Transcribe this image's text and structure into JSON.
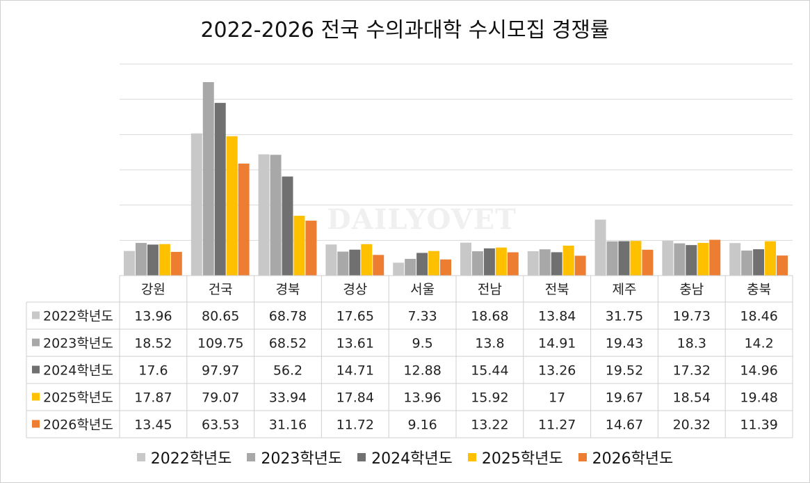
{
  "title": "2022-2026 전국 수의과대학 수시모집 경쟁률",
  "watermark": "DAILYOVET",
  "colors": {
    "s2022": "#c8c8c8",
    "s2023": "#a8a8a8",
    "s2024": "#707070",
    "s2025": "#ffc000",
    "s2026": "#ed7d31",
    "grid": "#d9d9d9"
  },
  "chart_data": {
    "type": "bar",
    "title": "2022-2026 전국 수의과대학 수시모집 경쟁률",
    "categories": [
      "강원",
      "건국",
      "경북",
      "경상",
      "서울",
      "전남",
      "전북",
      "제주",
      "충남",
      "충북"
    ],
    "ylim": [
      0,
      120
    ],
    "y_gridlines": [
      0,
      20,
      40,
      60,
      80,
      100,
      120
    ],
    "grid": true,
    "legend_position": "bottom",
    "data_table": true,
    "series": [
      {
        "name": "2022학년도",
        "values": [
          13.96,
          80.65,
          68.78,
          17.65,
          7.33,
          18.68,
          13.84,
          31.75,
          19.73,
          18.46
        ]
      },
      {
        "name": "2023학년도",
        "values": [
          18.52,
          109.75,
          68.52,
          13.61,
          9.5,
          13.8,
          14.91,
          19.43,
          18.3,
          14.2
        ]
      },
      {
        "name": "2024학년도",
        "values": [
          17.6,
          97.97,
          56.2,
          14.71,
          12.88,
          15.44,
          13.26,
          19.52,
          17.32,
          14.96
        ]
      },
      {
        "name": "2025학년도",
        "values": [
          17.87,
          79.07,
          33.94,
          17.84,
          13.96,
          15.92,
          17,
          19.67,
          18.54,
          19.48
        ]
      },
      {
        "name": "2026학년도",
        "values": [
          13.45,
          63.53,
          31.16,
          11.72,
          9.16,
          13.22,
          11.27,
          14.67,
          20.32,
          11.39
        ]
      }
    ],
    "table_values": [
      [
        "13.96",
        "80.65",
        "68.78",
        "17.65",
        "7.33",
        "18.68",
        "13.84",
        "31.75",
        "19.73",
        "18.46"
      ],
      [
        "18.52",
        "109.75",
        "68.52",
        "13.61",
        "9.5",
        "13.8",
        "14.91",
        "19.43",
        "18.3",
        "14.2"
      ],
      [
        "17.6",
        "97.97",
        "56.2",
        "14.71",
        "12.88",
        "15.44",
        "13.26",
        "19.52",
        "17.32",
        "14.96"
      ],
      [
        "17.87",
        "79.07",
        "33.94",
        "17.84",
        "13.96",
        "15.92",
        "17",
        "19.67",
        "18.54",
        "19.48"
      ],
      [
        "13.45",
        "63.53",
        "31.16",
        "11.72",
        "9.16",
        "13.22",
        "11.27",
        "14.67",
        "20.32",
        "11.39"
      ]
    ]
  }
}
